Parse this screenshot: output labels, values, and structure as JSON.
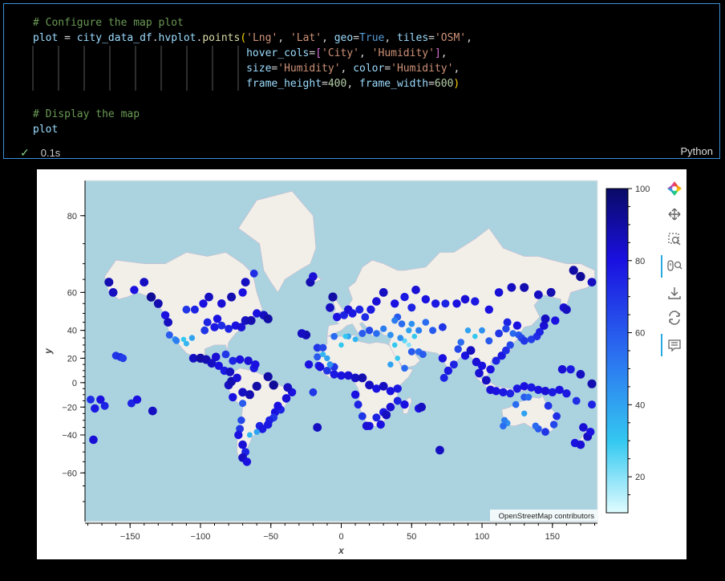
{
  "cell": {
    "code_lines": [
      [
        {
          "t": "# Configure the map plot",
          "c": "#6a9955"
        }
      ],
      [
        {
          "t": "plot",
          "c": "#9cdcfe"
        },
        {
          "t": " = ",
          "c": "#d4d4d4"
        },
        {
          "t": "city_data_df",
          "c": "#9cdcfe"
        },
        {
          "t": ".",
          "c": "#d4d4d4"
        },
        {
          "t": "hvplot",
          "c": "#9cdcfe"
        },
        {
          "t": ".",
          "c": "#d4d4d4"
        },
        {
          "t": "points",
          "c": "#dcdcaa"
        },
        {
          "t": "(",
          "c": "#ffd700"
        },
        {
          "t": "'Lng'",
          "c": "#ce9178"
        },
        {
          "t": ", ",
          "c": "#d4d4d4"
        },
        {
          "t": "'Lat'",
          "c": "#ce9178"
        },
        {
          "t": ", ",
          "c": "#d4d4d4"
        },
        {
          "t": "geo",
          "c": "#9cdcfe"
        },
        {
          "t": "=",
          "c": "#d4d4d4"
        },
        {
          "t": "True",
          "c": "#569cd6"
        },
        {
          "t": ", ",
          "c": "#d4d4d4"
        },
        {
          "t": "tiles",
          "c": "#9cdcfe"
        },
        {
          "t": "=",
          "c": "#d4d4d4"
        },
        {
          "t": "'OSM'",
          "c": "#ce9178"
        },
        {
          "t": ",",
          "c": "#d4d4d4"
        }
      ],
      [
        {
          "t": "                                  ",
          "c": "#d4d4d4"
        },
        {
          "t": "hover_cols",
          "c": "#9cdcfe"
        },
        {
          "t": "=",
          "c": "#d4d4d4"
        },
        {
          "t": "[",
          "c": "#da70d6"
        },
        {
          "t": "'City'",
          "c": "#ce9178"
        },
        {
          "t": ", ",
          "c": "#d4d4d4"
        },
        {
          "t": "'Humidity'",
          "c": "#ce9178"
        },
        {
          "t": "]",
          "c": "#da70d6"
        },
        {
          "t": ",",
          "c": "#d4d4d4"
        }
      ],
      [
        {
          "t": "                                  ",
          "c": "#d4d4d4"
        },
        {
          "t": "size",
          "c": "#9cdcfe"
        },
        {
          "t": "=",
          "c": "#d4d4d4"
        },
        {
          "t": "'Humidity'",
          "c": "#ce9178"
        },
        {
          "t": ", ",
          "c": "#d4d4d4"
        },
        {
          "t": "color",
          "c": "#9cdcfe"
        },
        {
          "t": "=",
          "c": "#d4d4d4"
        },
        {
          "t": "'Humidity'",
          "c": "#ce9178"
        },
        {
          "t": ",",
          "c": "#d4d4d4"
        }
      ],
      [
        {
          "t": "                                  ",
          "c": "#d4d4d4"
        },
        {
          "t": "frame_height",
          "c": "#9cdcfe"
        },
        {
          "t": "=",
          "c": "#d4d4d4"
        },
        {
          "t": "400",
          "c": "#b5cea8"
        },
        {
          "t": ", ",
          "c": "#d4d4d4"
        },
        {
          "t": "frame_width",
          "c": "#9cdcfe"
        },
        {
          "t": "=",
          "c": "#d4d4d4"
        },
        {
          "t": "600",
          "c": "#b5cea8"
        },
        {
          "t": ")",
          "c": "#ffd700"
        }
      ],
      [
        {
          "t": "",
          "c": "#d4d4d4"
        }
      ],
      [
        {
          "t": "# Display the map",
          "c": "#6a9955"
        }
      ],
      [
        {
          "t": "plot",
          "c": "#9cdcfe"
        }
      ]
    ],
    "exec_time": "0.1s",
    "language": "Python"
  },
  "chart_data": {
    "type": "scatter",
    "xlabel": "x",
    "ylabel": "y",
    "xlim": [
      -182,
      182
    ],
    "ylim": [
      -75,
      84
    ],
    "x_ticks": [
      -150,
      -100,
      -50,
      0,
      50,
      100,
      150
    ],
    "y_ticks": [
      80,
      60,
      40,
      20,
      0,
      -20,
      -40,
      -60
    ],
    "colorbar": {
      "min": 10,
      "max": 100,
      "ticks": [
        100,
        80,
        60,
        40,
        20
      ],
      "colors": [
        "#e0fcff",
        "#34c8f0",
        "#2a6cf0",
        "#1a10e0",
        "#0a0a66"
      ]
    },
    "attribution": "OpenStreetMap contributors",
    "points": [
      [
        -178,
        -14,
        72
      ],
      [
        -175,
        -21,
        78
      ],
      [
        -171,
        -14,
        80
      ],
      [
        -168,
        -19,
        75
      ],
      [
        -160,
        22,
        70
      ],
      [
        -157,
        21,
        72
      ],
      [
        -155,
        20,
        68
      ],
      [
        -149,
        -17,
        75
      ],
      [
        -145,
        -14,
        80
      ],
      [
        -134,
        -23,
        85
      ],
      [
        -176,
        -43,
        82
      ],
      [
        -165,
        64,
        88
      ],
      [
        -162,
        60,
        85
      ],
      [
        -147,
        61,
        80
      ],
      [
        -140,
        64,
        85
      ],
      [
        -135,
        58,
        92
      ],
      [
        -130,
        55,
        88
      ],
      [
        -125,
        49,
        80
      ],
      [
        -123,
        45,
        85
      ],
      [
        -122,
        37,
        60
      ],
      [
        -118,
        34,
        45
      ],
      [
        -117,
        33,
        50
      ],
      [
        -110,
        31,
        35
      ],
      [
        -112,
        34,
        30
      ],
      [
        -106,
        35,
        40
      ],
      [
        -97,
        40,
        70
      ],
      [
        -95,
        45,
        75
      ],
      [
        -90,
        42,
        78
      ],
      [
        -88,
        47,
        80
      ],
      [
        -85,
        43,
        72
      ],
      [
        -80,
        41,
        75
      ],
      [
        -75,
        43,
        80
      ],
      [
        -71,
        42,
        82
      ],
      [
        -68,
        46,
        85
      ],
      [
        -64,
        46,
        88
      ],
      [
        -60,
        50,
        80
      ],
      [
        -55,
        49,
        85
      ],
      [
        -52,
        47,
        90
      ],
      [
        -110,
        52,
        70
      ],
      [
        -104,
        52,
        75
      ],
      [
        -98,
        55,
        80
      ],
      [
        -94,
        58,
        85
      ],
      [
        -85,
        55,
        82
      ],
      [
        -78,
        58,
        88
      ],
      [
        -70,
        60,
        80
      ],
      [
        -68,
        64,
        85
      ],
      [
        -62,
        67,
        72
      ],
      [
        -105,
        20,
        85
      ],
      [
        -100,
        20,
        90
      ],
      [
        -96,
        19,
        88
      ],
      [
        -92,
        16,
        85
      ],
      [
        -89,
        21,
        82
      ],
      [
        -87,
        14,
        80
      ],
      [
        -83,
        10,
        78
      ],
      [
        -79,
        9,
        85
      ],
      [
        -82,
        23,
        70
      ],
      [
        -77,
        18,
        75
      ],
      [
        -72,
        19,
        80
      ],
      [
        -66,
        18,
        82
      ],
      [
        -62,
        12,
        78
      ],
      [
        -61,
        15,
        80
      ],
      [
        -52,
        5,
        90
      ],
      [
        -48,
        -2,
        92
      ],
      [
        -60,
        -3,
        90
      ],
      [
        -65,
        -10,
        88
      ],
      [
        -70,
        -8,
        85
      ],
      [
        -77,
        -12,
        80
      ],
      [
        -80,
        -2,
        85
      ],
      [
        -78,
        1,
        88
      ],
      [
        -74,
        4,
        82
      ],
      [
        -70,
        -17,
        60
      ],
      [
        -71,
        -30,
        65
      ],
      [
        -72,
        -36,
        70
      ],
      [
        -73,
        -40,
        80
      ],
      [
        -70,
        -46,
        82
      ],
      [
        -68,
        -50,
        75
      ],
      [
        -70,
        -53,
        85
      ],
      [
        -67,
        -55,
        80
      ],
      [
        -58,
        -34,
        75
      ],
      [
        -56,
        -36,
        78
      ],
      [
        -47,
        -24,
        80
      ],
      [
        -43,
        -22,
        75
      ],
      [
        -39,
        -13,
        82
      ],
      [
        -35,
        -8,
        80
      ],
      [
        -38,
        -4,
        85
      ],
      [
        -48,
        -28,
        70
      ],
      [
        -51,
        -30,
        75
      ],
      [
        -65,
        -40,
        35
      ],
      [
        -60,
        -38,
        40
      ],
      [
        -52,
        -33,
        78
      ],
      [
        -45,
        -19,
        80
      ],
      [
        -25,
        37,
        88
      ],
      [
        -28,
        38,
        85
      ],
      [
        -23,
        15,
        80
      ],
      [
        -17,
        28,
        70
      ],
      [
        -13,
        28,
        65
      ],
      [
        -16,
        14,
        75
      ],
      [
        -17,
        -35,
        85
      ],
      [
        -22,
        64,
        88
      ],
      [
        -20,
        66,
        82
      ],
      [
        -8,
        53,
        85
      ],
      [
        -6,
        58,
        90
      ],
      [
        -3,
        48,
        80
      ],
      [
        2,
        49,
        75
      ],
      [
        5,
        52,
        82
      ],
      [
        8,
        50,
        78
      ],
      [
        13,
        52,
        75
      ],
      [
        17,
        48,
        72
      ],
      [
        21,
        52,
        78
      ],
      [
        25,
        56,
        82
      ],
      [
        30,
        60,
        85
      ],
      [
        38,
        55,
        80
      ],
      [
        45,
        58,
        78
      ],
      [
        50,
        53,
        75
      ],
      [
        53,
        61,
        82
      ],
      [
        60,
        57,
        80
      ],
      [
        67,
        55,
        78
      ],
      [
        74,
        55,
        75
      ],
      [
        82,
        55,
        80
      ],
      [
        88,
        57,
        82
      ],
      [
        95,
        56,
        78
      ],
      [
        105,
        52,
        80
      ],
      [
        112,
        60,
        82
      ],
      [
        121,
        62,
        85
      ],
      [
        130,
        62,
        88
      ],
      [
        140,
        59,
        85
      ],
      [
        149,
        60,
        88
      ],
      [
        158,
        53,
        82
      ],
      [
        165,
        68,
        90
      ],
      [
        170,
        66,
        92
      ],
      [
        178,
        64,
        85
      ],
      [
        -5,
        36,
        55
      ],
      [
        0,
        30,
        30
      ],
      [
        5,
        36,
        40
      ],
      [
        10,
        34,
        35
      ],
      [
        15,
        38,
        60
      ],
      [
        20,
        40,
        65
      ],
      [
        25,
        38,
        55
      ],
      [
        30,
        41,
        50
      ],
      [
        35,
        37,
        45
      ],
      [
        38,
        30,
        30
      ],
      [
        45,
        33,
        25
      ],
      [
        48,
        30,
        20
      ],
      [
        52,
        36,
        30
      ],
      [
        55,
        25,
        55
      ],
      [
        58,
        23,
        60
      ],
      [
        35,
        15,
        40
      ],
      [
        40,
        20,
        30
      ],
      [
        45,
        12,
        55
      ],
      [
        50,
        25,
        60
      ],
      [
        -10,
        10,
        70
      ],
      [
        -5,
        7,
        78
      ],
      [
        0,
        6,
        80
      ],
      [
        5,
        6,
        82
      ],
      [
        10,
        4,
        85
      ],
      [
        15,
        4,
        88
      ],
      [
        20,
        -2,
        85
      ],
      [
        25,
        -5,
        80
      ],
      [
        30,
        -3,
        85
      ],
      [
        35,
        -7,
        80
      ],
      [
        40,
        -5,
        78
      ],
      [
        45,
        -18,
        80
      ],
      [
        40,
        -15,
        75
      ],
      [
        35,
        -20,
        82
      ],
      [
        30,
        -24,
        78
      ],
      [
        25,
        -28,
        75
      ],
      [
        20,
        -34,
        80
      ],
      [
        18,
        -34,
        82
      ],
      [
        15,
        -27,
        70
      ],
      [
        12,
        -18,
        75
      ],
      [
        10,
        -10,
        80
      ],
      [
        -20,
        -8,
        70
      ],
      [
        32,
        -26,
        85
      ],
      [
        28,
        -33,
        80
      ],
      [
        55,
        -21,
        80
      ],
      [
        57,
        -20,
        85
      ],
      [
        70,
        -49,
        85
      ],
      [
        73,
        4,
        75
      ],
      [
        72,
        20,
        80
      ],
      [
        76,
        10,
        78
      ],
      [
        80,
        15,
        75
      ],
      [
        83,
        27,
        65
      ],
      [
        88,
        22,
        80
      ],
      [
        92,
        26,
        85
      ],
      [
        96,
        17,
        82
      ],
      [
        100,
        14,
        80
      ],
      [
        103,
        2,
        85
      ],
      [
        98,
        8,
        82
      ],
      [
        106,
        11,
        80
      ],
      [
        110,
        18,
        75
      ],
      [
        114,
        22,
        78
      ],
      [
        117,
        26,
        72
      ],
      [
        120,
        30,
        65
      ],
      [
        122,
        38,
        55
      ],
      [
        126,
        37,
        60
      ],
      [
        128,
        35,
        65
      ],
      [
        130,
        33,
        70
      ],
      [
        135,
        34,
        68
      ],
      [
        139,
        36,
        72
      ],
      [
        141,
        39,
        75
      ],
      [
        144,
        43,
        82
      ],
      [
        145,
        47,
        85
      ],
      [
        152,
        46,
        80
      ],
      [
        160,
        52,
        85
      ],
      [
        106,
        -6,
        82
      ],
      [
        110,
        -7,
        80
      ],
      [
        115,
        -8,
        78
      ],
      [
        120,
        -9,
        75
      ],
      [
        125,
        -5,
        78
      ],
      [
        130,
        -3,
        80
      ],
      [
        135,
        -4,
        78
      ],
      [
        140,
        -6,
        80
      ],
      [
        145,
        -7,
        82
      ],
      [
        150,
        -8,
        78
      ],
      [
        147,
        -19,
        70
      ],
      [
        153,
        -27,
        72
      ],
      [
        151,
        -33,
        65
      ],
      [
        145,
        -38,
        70
      ],
      [
        140,
        -36,
        60
      ],
      [
        138,
        -34,
        55
      ],
      [
        130,
        -25,
        40
      ],
      [
        118,
        -32,
        45
      ],
      [
        115,
        -34,
        55
      ],
      [
        116,
        -30,
        50
      ],
      [
        124,
        -18,
        55
      ],
      [
        130,
        -12,
        60
      ],
      [
        133,
        -12,
        55
      ],
      [
        166,
        -45,
        80
      ],
      [
        170,
        -46,
        82
      ],
      [
        175,
        -41,
        85
      ],
      [
        177,
        -38,
        80
      ],
      [
        172,
        -35,
        82
      ],
      [
        178,
        -18,
        75
      ],
      [
        167,
        -15,
        72
      ],
      [
        160,
        -9,
        78
      ],
      [
        155,
        -6,
        80
      ],
      [
        157,
        11,
        82
      ],
      [
        163,
        11,
        78
      ],
      [
        170,
        7,
        85
      ],
      [
        178,
        -1,
        88
      ],
      [
        72,
        42,
        70
      ],
      [
        65,
        40,
        60
      ],
      [
        60,
        45,
        55
      ],
      [
        55,
        40,
        50
      ],
      [
        50,
        44,
        45
      ],
      [
        43,
        44,
        55
      ],
      [
        48,
        40,
        40
      ],
      [
        40,
        48,
        60
      ],
      [
        38,
        46,
        50
      ],
      [
        42,
        35,
        45
      ],
      [
        90,
        40,
        40
      ],
      [
        95,
        36,
        30
      ],
      [
        85,
        32,
        55
      ],
      [
        100,
        40,
        45
      ],
      [
        105,
        33,
        60
      ],
      [
        112,
        38,
        70
      ],
      [
        118,
        45,
        75
      ],
      [
        125,
        43,
        80
      ],
      [
        117,
        41,
        65
      ],
      [
        3,
        36,
        30
      ],
      [
        -5,
        13,
        70
      ],
      [
        -10,
        20,
        40
      ],
      [
        -8,
        15,
        45
      ],
      [
        -15,
        13,
        80
      ],
      [
        -17,
        21,
        60
      ],
      [
        -13,
        23,
        35
      ]
    ]
  }
}
